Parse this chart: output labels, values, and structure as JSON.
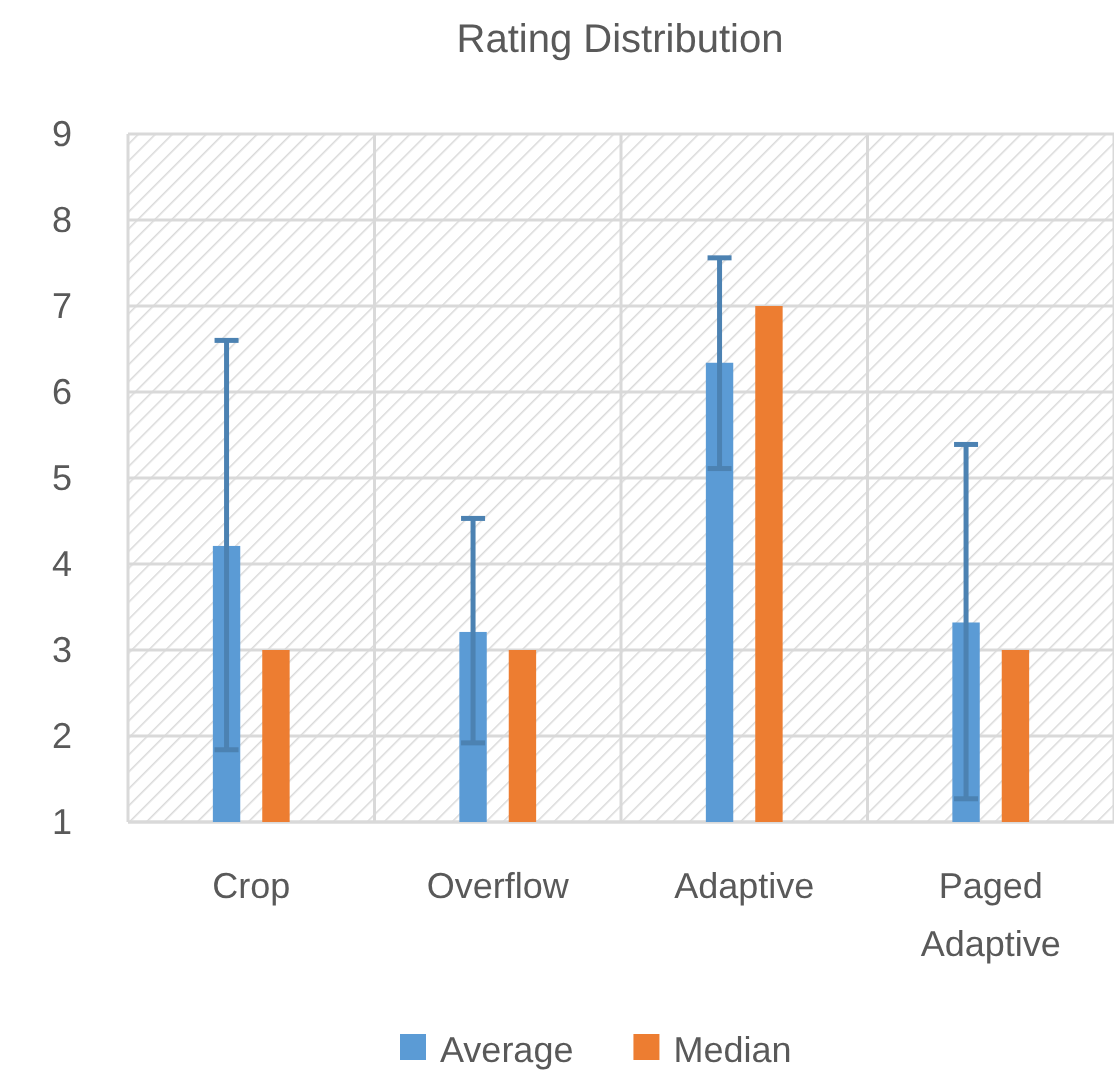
{
  "chart_data": {
    "type": "bar",
    "title": "Rating Distribution",
    "categories": [
      "Crop",
      "Overflow",
      "Adaptive",
      "Paged Adaptive"
    ],
    "series": [
      {
        "name": "Average",
        "color": "#5b9bd5",
        "values": [
          4.21,
          3.21,
          6.34,
          3.32
        ],
        "errors": [
          [
            1.84,
            6.6
          ],
          [
            1.92,
            4.53
          ],
          [
            5.11,
            7.56
          ],
          [
            1.27,
            5.39
          ]
        ]
      },
      {
        "name": "Median",
        "color": "#ed7d31",
        "values": [
          3,
          3,
          7,
          3
        ]
      }
    ],
    "ylim": [
      1,
      9
    ],
    "yticks": [
      1,
      2,
      3,
      4,
      5,
      6,
      7,
      8,
      9
    ],
    "grid": true,
    "legend": "bottom"
  }
}
